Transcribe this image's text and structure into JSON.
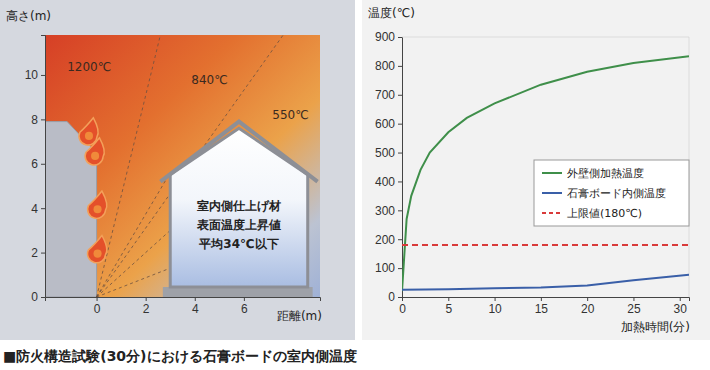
{
  "caption": "■防火構造試験(30分)における石膏ボードの室内側温度",
  "chart_data": [
    {
      "type": "diagram",
      "xlabel": "距離(m)",
      "ylabel": "高さ(m)",
      "xlim": [
        -2.1,
        9.1
      ],
      "ylim": [
        0,
        11.8
      ],
      "xticks": [
        0,
        2,
        4,
        6
      ],
      "yticks": [
        0,
        2,
        4,
        6,
        8,
        10
      ],
      "zones": [
        {
          "label": "1200℃"
        },
        {
          "label": "840℃"
        },
        {
          "label": "550℃"
        }
      ],
      "note": [
        "室内側仕上げ材",
        "表面温度上昇値",
        "平均34℃以下"
      ]
    },
    {
      "type": "line",
      "ylabel": "温度(℃)",
      "xlabel": "加熱時間(分)",
      "xlim": [
        0,
        31
      ],
      "ylim": [
        0,
        900
      ],
      "xticks": [
        0,
        5,
        10,
        15,
        20,
        25,
        30
      ],
      "yticks": [
        0,
        100,
        200,
        300,
        400,
        500,
        600,
        700,
        800,
        900
      ],
      "legend": "right",
      "series": [
        {
          "name": "外壁側加熱温度",
          "color": "#3f8f4a",
          "line_style": "solid",
          "x": [
            0,
            0.5,
            1,
            2,
            3,
            5,
            7,
            10,
            15,
            20,
            25,
            31
          ],
          "values": [
            20,
            270,
            350,
            440,
            500,
            570,
            620,
            670,
            735,
            780,
            810,
            833
          ]
        },
        {
          "name": "石膏ボード内側温度",
          "color": "#3a5fa8",
          "line_style": "solid",
          "x": [
            0,
            5,
            10,
            15,
            20,
            25,
            31
          ],
          "values": [
            25,
            27,
            30,
            33,
            40,
            58,
            77
          ]
        },
        {
          "name": "上限値(180℃)",
          "color": "#d93a3a",
          "line_style": "dashed",
          "x": [
            0,
            31
          ],
          "values": [
            180,
            180
          ]
        }
      ]
    }
  ]
}
